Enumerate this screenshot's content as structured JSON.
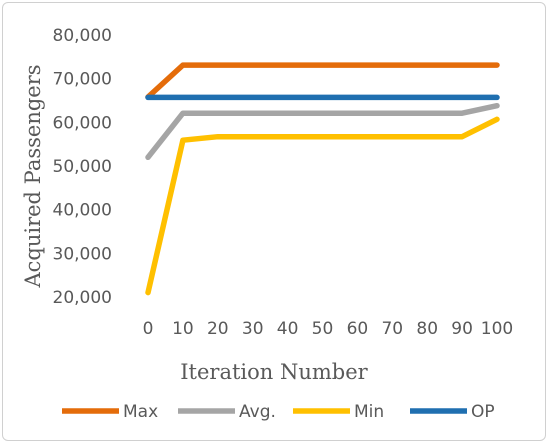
{
  "chart_data": {
    "type": "line",
    "title": "",
    "xlabel": "Iteration Number",
    "ylabel": "Acquired Passengers",
    "x": [
      0,
      10,
      20,
      30,
      40,
      50,
      60,
      70,
      80,
      90,
      100
    ],
    "x_tick_labels": [
      "0",
      "10",
      "20",
      "30",
      "40",
      "50",
      "60",
      "70",
      "80",
      "90",
      "100"
    ],
    "ylim": [
      20000,
      80000
    ],
    "y_ticks": [
      20000,
      30000,
      40000,
      50000,
      60000,
      70000,
      80000
    ],
    "y_tick_labels": [
      "20,000",
      "30,000",
      "40,000",
      "50,000",
      "60,000",
      "70,000",
      "80,000"
    ],
    "grid": false,
    "legend_position": "bottom",
    "series": [
      {
        "name": "Max",
        "color": "#e46c0a",
        "values": [
          65800,
          73100,
          73100,
          73100,
          73100,
          73100,
          73100,
          73100,
          73100,
          73100,
          73100
        ]
      },
      {
        "name": "Avg.",
        "color": "#a5a5a5",
        "values": [
          52000,
          62100,
          62100,
          62100,
          62100,
          62100,
          62100,
          62100,
          62100,
          62100,
          63800
        ]
      },
      {
        "name": "Min",
        "color": "#ffc000",
        "values": [
          21000,
          55900,
          56700,
          56700,
          56700,
          56700,
          56700,
          56700,
          56700,
          56700,
          60700
        ]
      },
      {
        "name": "OP",
        "color": "#1f6fb0",
        "values": [
          65700,
          65700,
          65700,
          65700,
          65700,
          65700,
          65700,
          65700,
          65700,
          65700,
          65700
        ]
      }
    ]
  }
}
